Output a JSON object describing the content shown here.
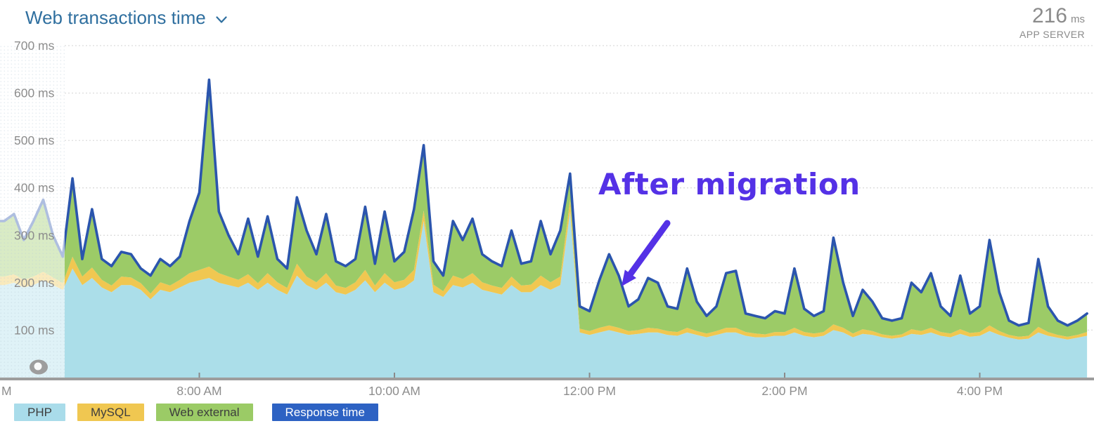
{
  "header": {
    "title": "Web transactions time",
    "current_value": "216",
    "current_value_unit": "ms",
    "current_value_scope": "APP SERVER"
  },
  "annotation": {
    "label": "After migration",
    "color": "#5431e6"
  },
  "legend": {
    "items": [
      {
        "label": "PHP",
        "bg": "#a9dcea",
        "fg": "#3d3d3d"
      },
      {
        "label": "MySQL",
        "bg": "#f0c751",
        "fg": "#3d3d3d"
      },
      {
        "label": "Web external",
        "bg": "#9bcb66",
        "fg": "#3d3d3d"
      },
      {
        "label": "Response time",
        "bg": "#2d62c3",
        "fg": "#ffffff"
      }
    ]
  },
  "chart_data": {
    "type": "area",
    "stacked": true,
    "title": "Web transactions time",
    "unit": "ms",
    "ylim": [
      0,
      700
    ],
    "grid": true,
    "y_ticks": [
      100,
      200,
      300,
      400,
      500,
      600,
      700
    ],
    "y_tick_suffix": " ms",
    "x_minutes_start": 0,
    "x_minutes_step": 6,
    "x_ticks": [
      {
        "minutes": 0,
        "label": "M",
        "partial": true
      },
      {
        "minutes": 120,
        "label": "8:00 AM"
      },
      {
        "minutes": 240,
        "label": "10:00 AM"
      },
      {
        "minutes": 360,
        "label": "12:00 PM"
      },
      {
        "minutes": 480,
        "label": "2:00 PM"
      },
      {
        "minutes": 600,
        "label": "4:00 PM"
      }
    ],
    "faded_window_end_minutes": 36,
    "series": [
      {
        "name": "PHP",
        "color": "#abdee9",
        "values": [
          195,
          200,
          190,
          195,
          205,
          195,
          185,
          230,
          195,
          210,
          190,
          180,
          195,
          195,
          185,
          165,
          185,
          180,
          190,
          200,
          205,
          210,
          200,
          195,
          190,
          200,
          185,
          200,
          185,
          175,
          215,
          195,
          185,
          200,
          180,
          175,
          185,
          205,
          180,
          200,
          185,
          190,
          205,
          330,
          180,
          170,
          195,
          190,
          200,
          185,
          180,
          175,
          195,
          180,
          180,
          195,
          185,
          195,
          350,
          95,
          90,
          95,
          100,
          95,
          90,
          92,
          95,
          95,
          90,
          88,
          95,
          90,
          85,
          90,
          95,
          95,
          88,
          85,
          85,
          88,
          88,
          95,
          88,
          85,
          88,
          100,
          95,
          85,
          92,
          90,
          85,
          82,
          85,
          92,
          90,
          95,
          88,
          85,
          92,
          86,
          88,
          98,
          90,
          84,
          80,
          82,
          95,
          88,
          84,
          80,
          84,
          88
        ]
      },
      {
        "name": "MySQL",
        "color": "#f0c751",
        "values": [
          18,
          18,
          16,
          18,
          18,
          16,
          14,
          25,
          18,
          22,
          16,
          14,
          18,
          16,
          14,
          12,
          16,
          14,
          16,
          20,
          22,
          24,
          20,
          18,
          16,
          18,
          14,
          20,
          16,
          14,
          25,
          18,
          16,
          20,
          14,
          14,
          16,
          22,
          14,
          20,
          16,
          16,
          22,
          22,
          16,
          12,
          20,
          18,
          20,
          16,
          14,
          14,
          18,
          14,
          16,
          20,
          16,
          18,
          25,
          8,
          8,
          10,
          10,
          10,
          8,
          8,
          10,
          8,
          8,
          8,
          10,
          8,
          8,
          8,
          10,
          10,
          8,
          8,
          6,
          8,
          8,
          10,
          8,
          8,
          8,
          12,
          10,
          8,
          10,
          8,
          6,
          6,
          6,
          10,
          8,
          10,
          8,
          8,
          10,
          8,
          8,
          12,
          8,
          6,
          6,
          6,
          12,
          8,
          6,
          6,
          6,
          8
        ]
      },
      {
        "name": "Web external",
        "color": "#9ccb67",
        "values": [
          117,
          127,
          84,
          117,
          152,
          89,
          56,
          165,
          37,
          123,
          44,
          41,
          52,
          49,
          31,
          38,
          49,
          41,
          49,
          110,
          163,
          394,
          130,
          87,
          54,
          117,
          56,
          120,
          49,
          41,
          140,
          97,
          59,
          125,
          51,
          46,
          49,
          133,
          46,
          130,
          44,
          59,
          128,
          138,
          49,
          33,
          115,
          82,
          115,
          59,
          51,
          46,
          97,
          46,
          49,
          115,
          59,
          97,
          55,
          47,
          42,
          100,
          150,
          110,
          52,
          65,
          105,
          97,
          52,
          49,
          125,
          62,
          37,
          52,
          115,
          120,
          39,
          37,
          34,
          44,
          39,
          125,
          49,
          37,
          44,
          183,
          95,
          37,
          83,
          62,
          34,
          32,
          34,
          98,
          82,
          115,
          54,
          37,
          113,
          41,
          54,
          180,
          82,
          30,
          24,
          27,
          143,
          54,
          30,
          24,
          30,
          39
        ]
      }
    ],
    "response_line": {
      "name": "Response time",
      "color": "#2b55ad",
      "derived_from": "stack_total"
    }
  }
}
